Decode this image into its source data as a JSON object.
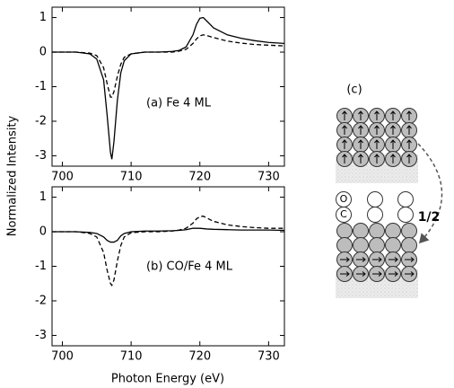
{
  "chart_data": [
    {
      "type": "line",
      "annotation": "(a) Fe 4 ML",
      "y_label": "Normalized Intensity",
      "x": [
        698.5,
        700,
        702,
        704,
        705,
        706,
        706.5,
        707,
        707.2,
        707.5,
        708,
        708.5,
        709,
        710,
        712,
        714,
        716,
        717,
        718,
        719,
        719.5,
        720,
        720.5,
        721,
        722,
        724,
        726,
        728,
        730,
        732.3
      ],
      "series": [
        {
          "color": "#000000",
          "style": "solid",
          "values": [
            0,
            0,
            0,
            -0.05,
            -0.2,
            -0.8,
            -1.8,
            -2.9,
            -3.1,
            -2.6,
            -1.4,
            -0.6,
            -0.25,
            -0.05,
            0,
            0,
            0.02,
            0.05,
            0.15,
            0.5,
            0.8,
            0.98,
            1.0,
            0.9,
            0.7,
            0.5,
            0.4,
            0.33,
            0.28,
            0.25
          ]
        },
        {
          "color": "#000000",
          "style": "dashed",
          "values": [
            0,
            0,
            0,
            -0.03,
            -0.1,
            -0.45,
            -0.9,
            -1.3,
            -1.3,
            -1.15,
            -0.7,
            -0.35,
            -0.15,
            -0.05,
            0,
            0,
            0,
            0.03,
            0.08,
            0.25,
            0.38,
            0.47,
            0.5,
            0.48,
            0.42,
            0.32,
            0.26,
            0.22,
            0.2,
            0.18
          ]
        }
      ],
      "xlim": [
        698.5,
        732.3
      ],
      "ylim": [
        -3.3,
        1.3
      ],
      "xticks": [
        700,
        710,
        720,
        730
      ],
      "yticks": [
        -3,
        -2,
        -1,
        0,
        1
      ]
    },
    {
      "type": "line",
      "annotation": "(b) CO/Fe 4 ML",
      "x_label": "Photon Energy (eV)",
      "x": [
        698.5,
        700,
        702,
        704,
        705,
        706,
        706.5,
        707,
        707.2,
        707.5,
        708,
        708.5,
        709,
        710,
        712,
        714,
        716,
        717,
        718,
        719,
        719.5,
        720,
        720.5,
        721,
        722,
        724,
        726,
        728,
        730,
        732.3
      ],
      "series": [
        {
          "color": "#000000",
          "style": "solid",
          "values": [
            0,
            0,
            0,
            -0.02,
            -0.05,
            -0.15,
            -0.25,
            -0.3,
            -0.3,
            -0.3,
            -0.25,
            -0.12,
            -0.05,
            0,
            0.02,
            0.02,
            0.03,
            0.04,
            0.06,
            0.1,
            0.1,
            0.1,
            0.09,
            0.08,
            0.07,
            0.06,
            0.05,
            0.05,
            0.05,
            0.04
          ]
        },
        {
          "color": "#000000",
          "style": "dashed",
          "values": [
            0,
            0,
            0,
            -0.05,
            -0.15,
            -0.6,
            -1.1,
            -1.5,
            -1.55,
            -1.4,
            -0.85,
            -0.4,
            -0.15,
            -0.03,
            0,
            0,
            0.02,
            0.05,
            0.1,
            0.25,
            0.37,
            0.44,
            0.45,
            0.4,
            0.3,
            0.2,
            0.15,
            0.12,
            0.1,
            0.1
          ]
        }
      ],
      "xlim": [
        698.5,
        732.3
      ],
      "ylim": [
        -3.3,
        1.3
      ],
      "xticks": [
        700,
        710,
        720,
        730
      ],
      "yticks": [
        -3,
        -2,
        -1,
        0,
        1
      ]
    }
  ],
  "diagram": {
    "label": "(c)",
    "oxygen": "O",
    "carbon": "C",
    "ratio": "1/2"
  }
}
